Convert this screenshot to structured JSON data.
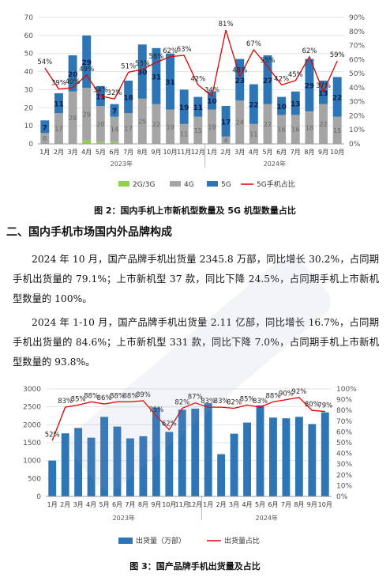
{
  "figure1": {
    "caption": "图 2：国内手机上市新机型数量及 5G 机型数量占比",
    "legend": [
      "2G/3G",
      "4G",
      "5G",
      "5G手机占比"
    ]
  },
  "section_heading": "二、国内手机市场国内外品牌构成",
  "paragraph1": "2024 年 10 月，国产品牌手机出货量 2345.8 万部，同比增长 30.2%，占同期手机出货量的 79.1%；上市新机型 37 款，同比下降 24.5%，占同期手机上市新机型数量的 100%。",
  "paragraph2": "2024 年 1-10 月，国产品牌手机出货量 2.11 亿部，同比增长 16.7%，占同期手机出货量的 84.6%；上市新机型 331 款，同比下降 7.0%，占同期手机上市新机型数量的 93.8%。",
  "figure2": {
    "caption": "图 3：国产品牌手机出货量及占比",
    "legend": [
      "出货量（万部）",
      "出货量占比"
    ]
  },
  "colors": {
    "c5g": "#2e75b6",
    "c4g": "#a5a5a5",
    "c3g": "#92d050",
    "line": "#e00000",
    "bar2": "#2e75b6"
  },
  "chart_data": [
    {
      "type": "bar",
      "stacked": true,
      "categories": [
        "1月",
        "2月",
        "3月",
        "4月",
        "5月",
        "6月",
        "7月",
        "8月",
        "9月",
        "10月",
        "11月",
        "12月",
        "1月",
        "2月",
        "3月",
        "4月",
        "5月",
        "6月",
        "7月",
        "8月",
        "9月",
        "10月"
      ],
      "year_labels": [
        "2023年",
        "2024年"
      ],
      "series": [
        {
          "name": "2G/3G",
          "values": [
            0,
            0,
            0,
            2,
            1,
            1,
            0,
            0,
            0,
            0,
            0,
            0,
            0,
            0,
            0,
            0,
            0,
            0,
            0,
            0,
            0,
            0
          ]
        },
        {
          "name": "4G",
          "values": [
            6,
            17,
            29,
            29,
            20,
            14,
            17,
            25,
            22,
            19,
            11,
            15,
            19,
            4,
            24,
            11,
            22,
            16,
            16,
            18,
            22,
            15
          ]
        },
        {
          "name": "5G",
          "values": [
            7,
            11,
            20,
            29,
            11,
            7,
            18,
            30,
            31,
            31,
            19,
            11,
            10,
            17,
            23,
            22,
            27,
            10,
            13,
            29,
            13,
            22
          ]
        },
        {
          "name": "5G手机占比",
          "axis": "right",
          "values": [
            54,
            39,
            40,
            49,
            34,
            32,
            51,
            53,
            58,
            62,
            63,
            42,
            34,
            81,
            48,
            67,
            55,
            42,
            45,
            62,
            37,
            59
          ]
        }
      ],
      "ylim": [
        0,
        70
      ],
      "y2lim": [
        0,
        90
      ],
      "yticks": [
        0,
        10,
        20,
        30,
        40,
        50,
        60,
        70
      ],
      "y2ticks": [
        "0%",
        "10%",
        "20%",
        "30%",
        "40%",
        "50%",
        "60%",
        "70%",
        "80%",
        "90%"
      ]
    },
    {
      "type": "bar",
      "categories": [
        "1月",
        "2月",
        "3月",
        "4月",
        "5月",
        "6月",
        "7月",
        "8月",
        "9月",
        "10月",
        "11月",
        "12月",
        "1月",
        "2月",
        "3月",
        "4月",
        "5月",
        "6月",
        "7月",
        "8月",
        "9月",
        "10月"
      ],
      "year_labels": [
        "2023年",
        "2024年"
      ],
      "series": [
        {
          "name": "出货量（万部）",
          "values": [
            1000,
            1760,
            1910,
            1640,
            2220,
            1950,
            1620,
            1680,
            2480,
            1800,
            2420,
            2450,
            2600,
            1180,
            1750,
            2060,
            2540,
            2200,
            2180,
            2220,
            2020,
            2346
          ]
        },
        {
          "name": "出货量占比",
          "axis": "right",
          "values": [
            52,
            83,
            85,
            88,
            86,
            88,
            88,
            89,
            75,
            62,
            82,
            87,
            83,
            83,
            82,
            85,
            83,
            88,
            90,
            92,
            80,
            79
          ]
        }
      ],
      "ylim": [
        0,
        3000
      ],
      "y2lim": [
        0,
        100
      ],
      "yticks": [
        0,
        500,
        1000,
        1500,
        2000,
        2500,
        3000
      ],
      "y2ticks": [
        "0%",
        "10%",
        "20%",
        "30%",
        "40%",
        "50%",
        "60%",
        "70%",
        "80%",
        "90%",
        "100%"
      ]
    }
  ]
}
